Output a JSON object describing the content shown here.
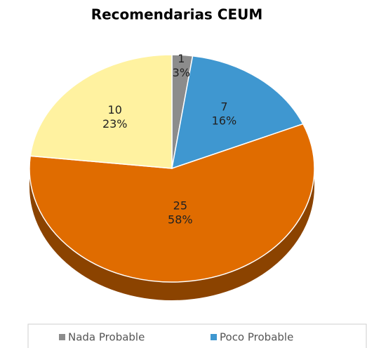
{
  "chart_data": {
    "type": "pie",
    "title": "Recomendarias CEUM",
    "categories": [
      "Nada Probable",
      "Poco Probable",
      null,
      null
    ],
    "values": [
      1,
      7,
      25,
      10
    ],
    "percentages": [
      3,
      16,
      58,
      23
    ],
    "percentage_labels": [
      "3%",
      "16%",
      "58%",
      "23%"
    ],
    "colors": [
      "#8c8c8c",
      "#3f97d0",
      "#e06c00",
      "#fff2a0"
    ],
    "legend": "bottom"
  }
}
